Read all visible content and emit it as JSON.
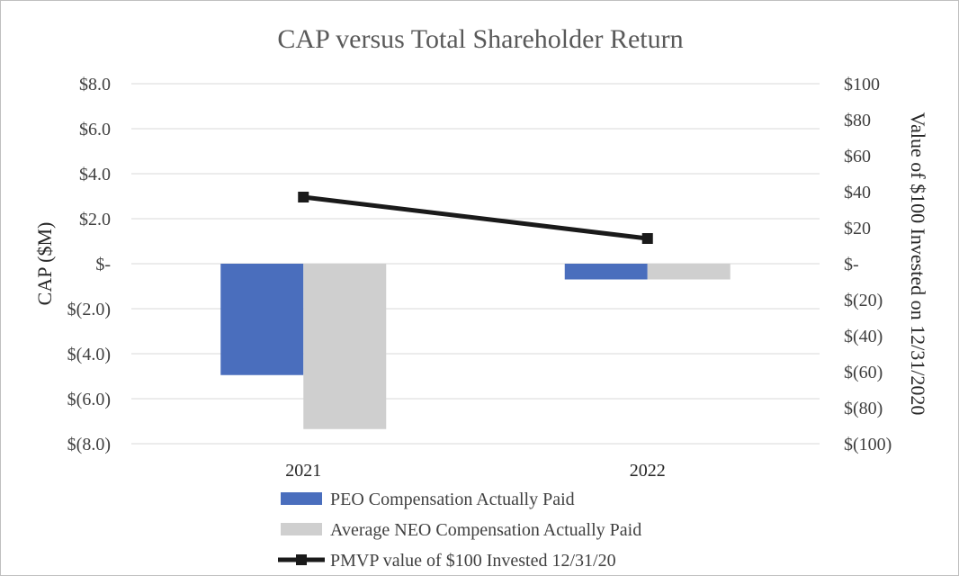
{
  "chart_data": {
    "type": "bar",
    "title": "CAP versus Total Shareholder Return",
    "categories": [
      "2021",
      "2022"
    ],
    "ylabel": "CAP ($M)",
    "y2label": "Value of $100 Invested on 12/31/2020",
    "ylim": [
      -8,
      8
    ],
    "y2lim": [
      -100,
      100
    ],
    "y_ticks": [
      {
        "value": 8,
        "label": "$8.0"
      },
      {
        "value": 6,
        "label": "$6.0"
      },
      {
        "value": 4,
        "label": "$4.0"
      },
      {
        "value": 2,
        "label": "$2.0"
      },
      {
        "value": 0,
        "label": "$-"
      },
      {
        "value": -2,
        "label": "$(2.0)"
      },
      {
        "value": -4,
        "label": "$(4.0)"
      },
      {
        "value": -6,
        "label": "$(6.0)"
      },
      {
        "value": -8,
        "label": "$(8.0)"
      }
    ],
    "y2_ticks": [
      {
        "value": 100,
        "label": "$100"
      },
      {
        "value": 80,
        "label": "$80"
      },
      {
        "value": 60,
        "label": "$60"
      },
      {
        "value": 40,
        "label": "$40"
      },
      {
        "value": 20,
        "label": "$20"
      },
      {
        "value": 0,
        "label": "$-"
      },
      {
        "value": -20,
        "label": "$(20)"
      },
      {
        "value": -40,
        "label": "$(40)"
      },
      {
        "value": -60,
        "label": "$(60)"
      },
      {
        "value": -80,
        "label": "$(80)"
      },
      {
        "value": -100,
        "label": "$(100)"
      }
    ],
    "series": [
      {
        "name": "PEO Compensation Actually Paid",
        "kind": "bar",
        "axis": "left",
        "color": "#4a6ebd",
        "values": [
          -4.95,
          -0.7
        ]
      },
      {
        "name": "Average NEO Compensation Actually Paid",
        "kind": "bar",
        "axis": "left",
        "color": "#cfcfcf",
        "values": [
          -7.35,
          -0.7
        ]
      },
      {
        "name": "PMVP value of $100 Invested 12/31/20",
        "kind": "line",
        "axis": "right",
        "color": "#1a1a1a",
        "values": [
          37,
          14
        ]
      }
    ],
    "grid": true,
    "legend_position": "bottom"
  }
}
